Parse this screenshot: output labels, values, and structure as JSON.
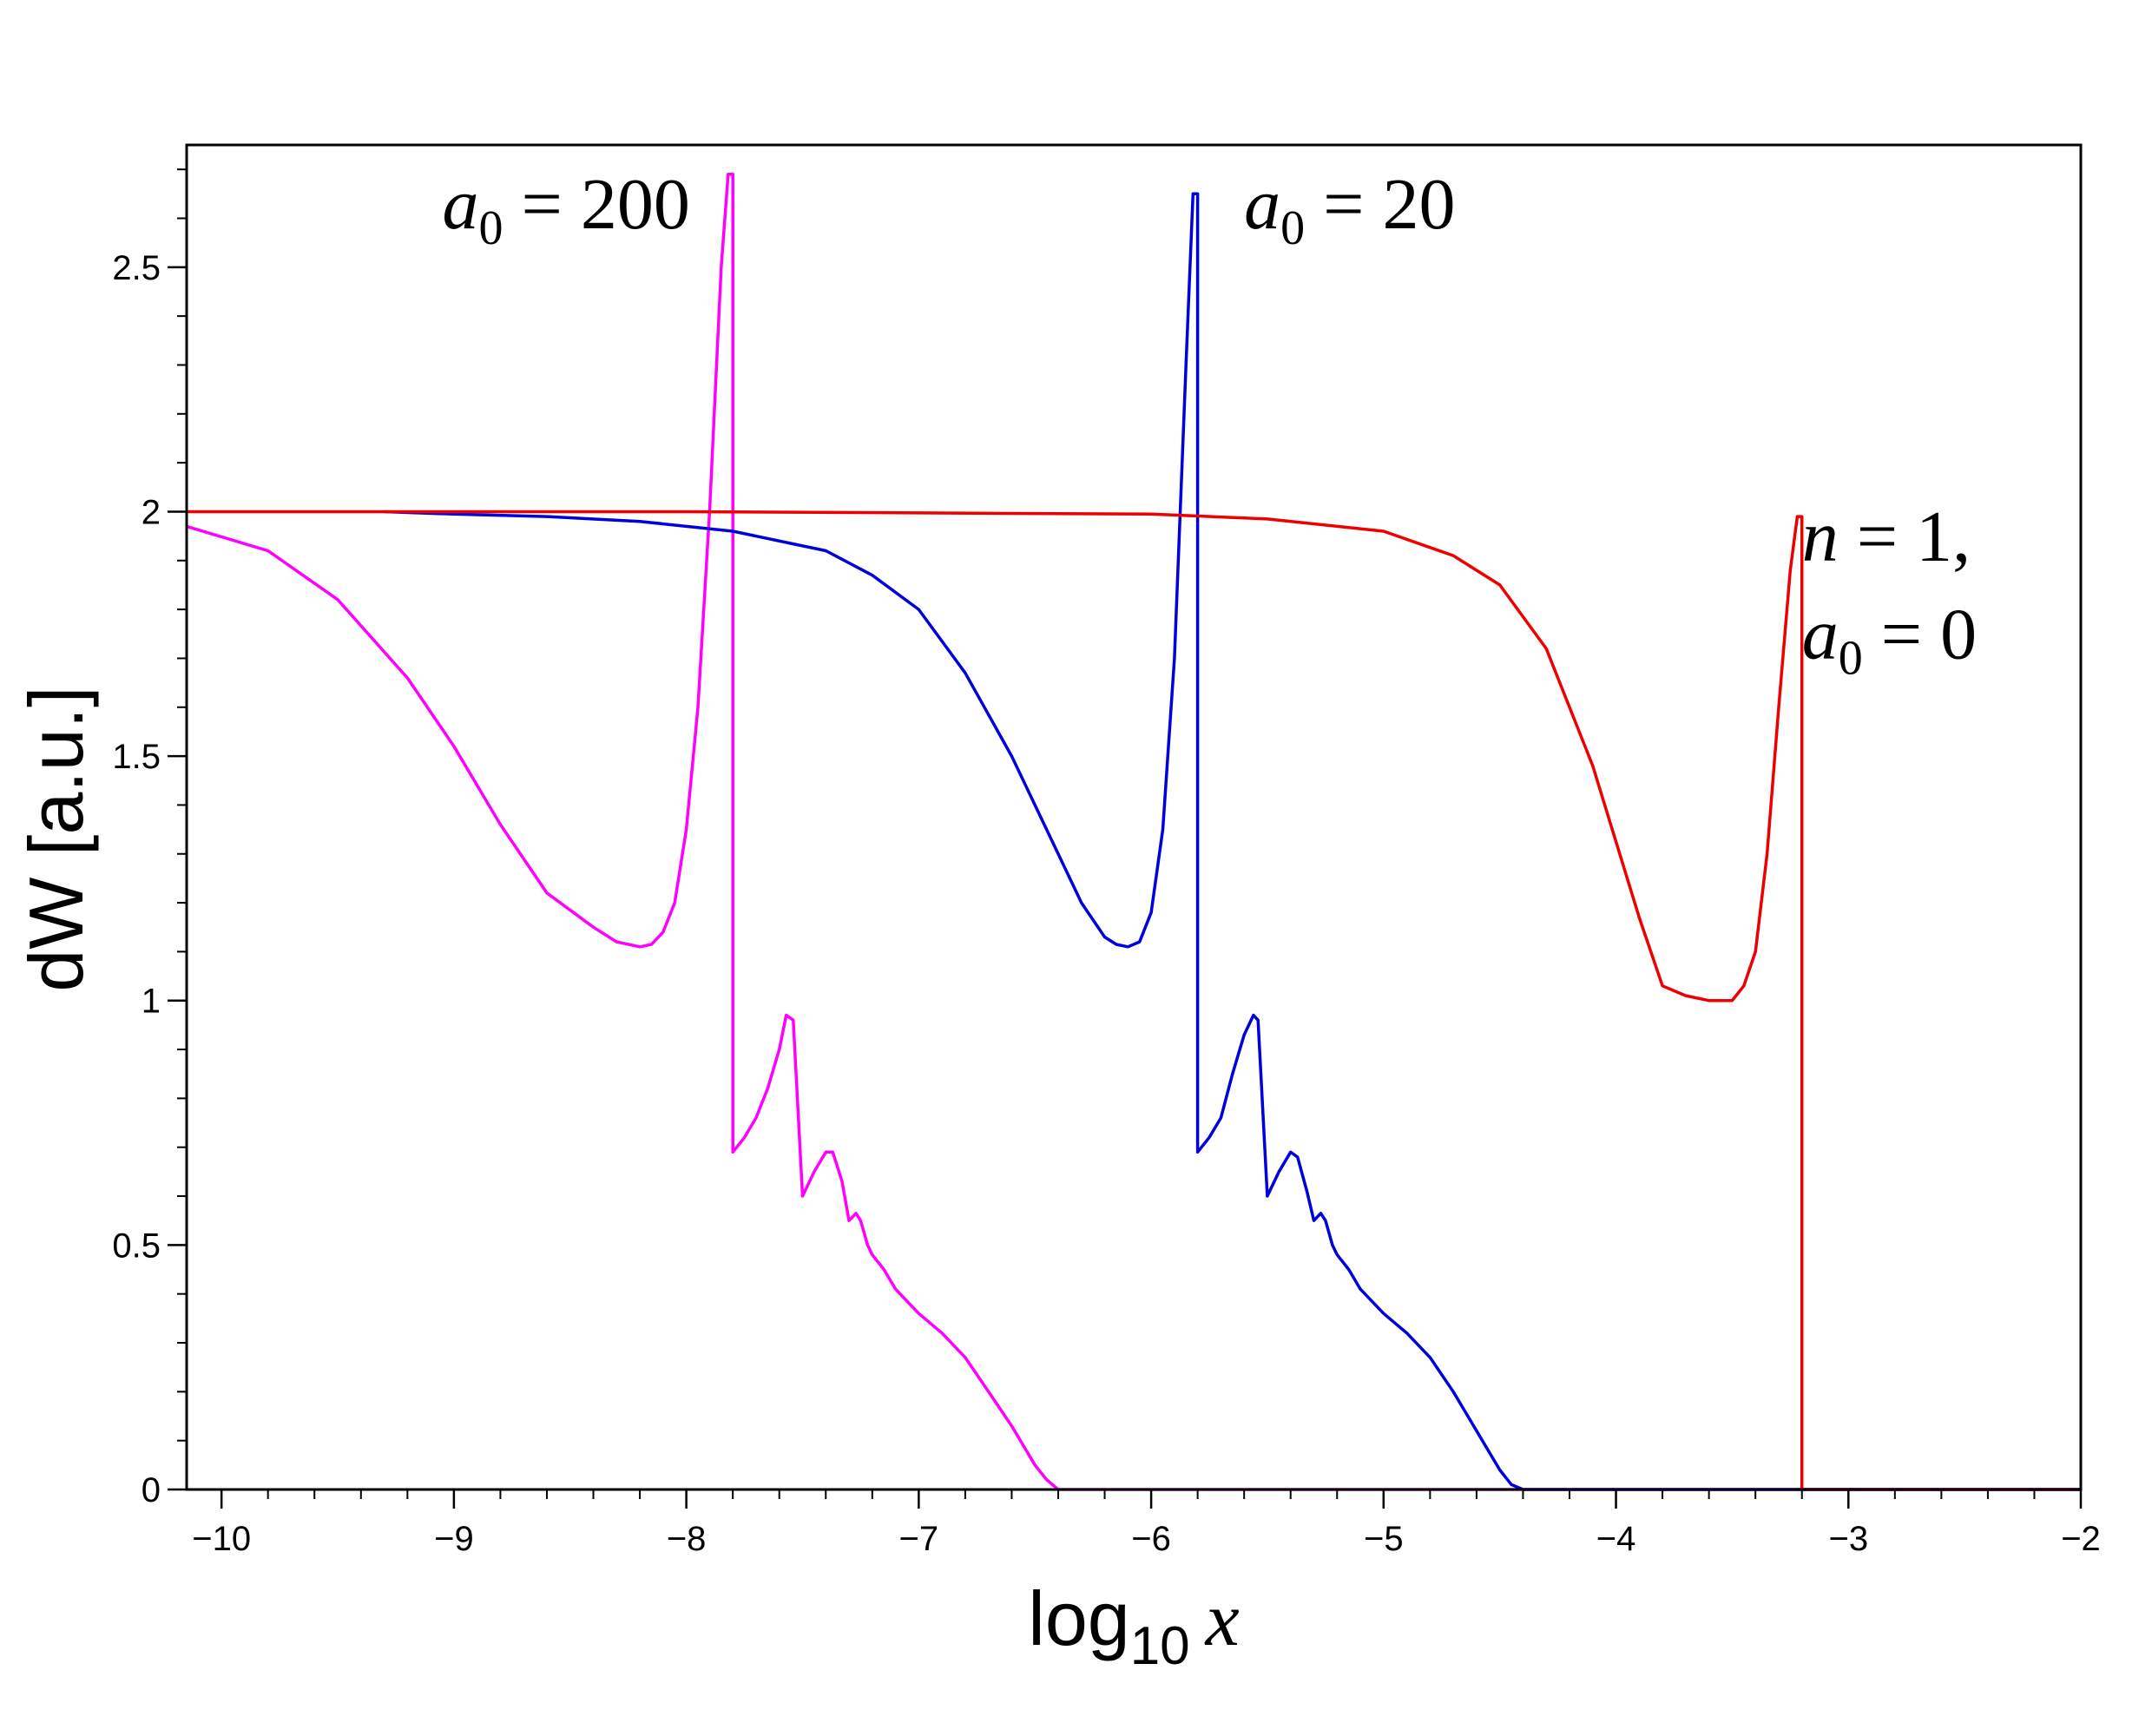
{
  "chart_data": {
    "type": "line",
    "xlabel": {
      "main": "log",
      "sub": "10",
      "var": "x"
    },
    "ylabel": "dW [a.u.]",
    "xlim": [
      -10.15,
      -2
    ],
    "ylim": [
      0,
      2.75
    ],
    "x_ticks": [
      -10,
      -9,
      -8,
      -7,
      -6,
      -5,
      -4,
      -3,
      -2
    ],
    "x_tick_labels": [
      "−10",
      "−9",
      "−8",
      "−7",
      "−6",
      "−5",
      "−4",
      "−3",
      "−2"
    ],
    "y_ticks": [
      0,
      0.5,
      1,
      1.5,
      2,
      2.5
    ],
    "y_tick_labels": [
      "0",
      "0.5",
      "1",
      "1.5",
      "2",
      "2.5"
    ],
    "grid": false,
    "annotations": [
      {
        "id": "a0-200",
        "var": "a",
        "sub": "0",
        "rest": " = 200",
        "x": -9.05,
        "y": 2.58
      },
      {
        "id": "a0-20",
        "var": "a",
        "sub": "0",
        "rest": " = 20",
        "x": -5.6,
        "y": 2.58
      },
      {
        "id": "n-1",
        "var": "n",
        "sub": "",
        "rest": "  = 1,",
        "x": -3.2,
        "y": 1.9
      },
      {
        "id": "a0-0",
        "var": "a",
        "sub": "0",
        "rest": " = 0",
        "x": -3.2,
        "y": 1.7
      }
    ],
    "series": [
      {
        "color": "#ff00ff",
        "x": [
          -10.15,
          -9.8,
          -9.5,
          -9.2,
          -9.0,
          -8.8,
          -8.6,
          -8.4,
          -8.3,
          -8.2,
          -8.15,
          -8.1,
          -8.05,
          -8.0,
          -7.95,
          -7.9,
          -7.85,
          -7.82,
          -7.8,
          -7.8,
          -7.75,
          -7.7,
          -7.65,
          -7.6,
          -7.57,
          -7.54,
          -7.5,
          -7.45,
          -7.4,
          -7.37,
          -7.33,
          -7.3,
          -7.27,
          -7.25,
          -7.22,
          -7.2,
          -7.15,
          -7.1,
          -7.0,
          -6.9,
          -6.8,
          -6.7,
          -6.6,
          -6.5,
          -6.45,
          -6.4,
          -6.0,
          -5.0,
          -4.0,
          -3.0,
          -2.0
        ],
        "y": [
          1.97,
          1.92,
          1.82,
          1.66,
          1.52,
          1.36,
          1.22,
          1.15,
          1.12,
          1.11,
          1.115,
          1.14,
          1.2,
          1.35,
          1.6,
          2.0,
          2.5,
          2.69,
          2.69,
          0.69,
          0.72,
          0.76,
          0.82,
          0.9,
          0.97,
          0.96,
          0.6,
          0.65,
          0.69,
          0.69,
          0.63,
          0.55,
          0.565,
          0.55,
          0.5,
          0.48,
          0.45,
          0.41,
          0.36,
          0.32,
          0.27,
          0.2,
          0.13,
          0.05,
          0.02,
          0.0,
          0.0,
          0.0,
          0.0,
          0.0,
          0.0
        ]
      },
      {
        "color": "#0000dd",
        "x": [
          -9.3,
          -9.0,
          -8.6,
          -8.2,
          -7.8,
          -7.4,
          -7.2,
          -7.0,
          -6.8,
          -6.6,
          -6.4,
          -6.3,
          -6.2,
          -6.15,
          -6.1,
          -6.05,
          -6.0,
          -5.95,
          -5.9,
          -5.85,
          -5.82,
          -5.8,
          -5.8,
          -5.75,
          -5.7,
          -5.65,
          -5.6,
          -5.56,
          -5.54,
          -5.5,
          -5.45,
          -5.4,
          -5.37,
          -5.33,
          -5.3,
          -5.27,
          -5.25,
          -5.22,
          -5.2,
          -5.15,
          -5.1,
          -5.0,
          -4.9,
          -4.8,
          -4.7,
          -4.6,
          -4.5,
          -4.45,
          -4.4,
          -4.0,
          -3.0,
          -2.0
        ],
        "y": [
          2.0,
          1.995,
          1.99,
          1.98,
          1.96,
          1.92,
          1.87,
          1.8,
          1.67,
          1.5,
          1.3,
          1.2,
          1.13,
          1.115,
          1.11,
          1.12,
          1.18,
          1.35,
          1.7,
          2.3,
          2.65,
          2.65,
          0.69,
          0.72,
          0.76,
          0.85,
          0.93,
          0.97,
          0.96,
          0.6,
          0.65,
          0.69,
          0.68,
          0.61,
          0.55,
          0.565,
          0.55,
          0.5,
          0.48,
          0.45,
          0.41,
          0.36,
          0.32,
          0.27,
          0.2,
          0.12,
          0.04,
          0.01,
          0.0,
          0.0,
          0.0,
          0.0
        ]
      },
      {
        "color": "#ee0000",
        "x": [
          -10.15,
          -8.0,
          -6.0,
          -5.5,
          -5.0,
          -4.7,
          -4.5,
          -4.3,
          -4.1,
          -3.9,
          -3.8,
          -3.7,
          -3.6,
          -3.55,
          -3.5,
          -3.45,
          -3.4,
          -3.35,
          -3.3,
          -3.25,
          -3.22,
          -3.2,
          -3.2,
          -3.0,
          -2.0
        ],
        "y": [
          2.0,
          2.0,
          1.995,
          1.985,
          1.96,
          1.91,
          1.85,
          1.72,
          1.48,
          1.17,
          1.03,
          1.01,
          1.0,
          1.0,
          1.0,
          1.03,
          1.1,
          1.3,
          1.6,
          1.88,
          1.99,
          1.99,
          0.0,
          0.0,
          0.0
        ]
      }
    ]
  }
}
